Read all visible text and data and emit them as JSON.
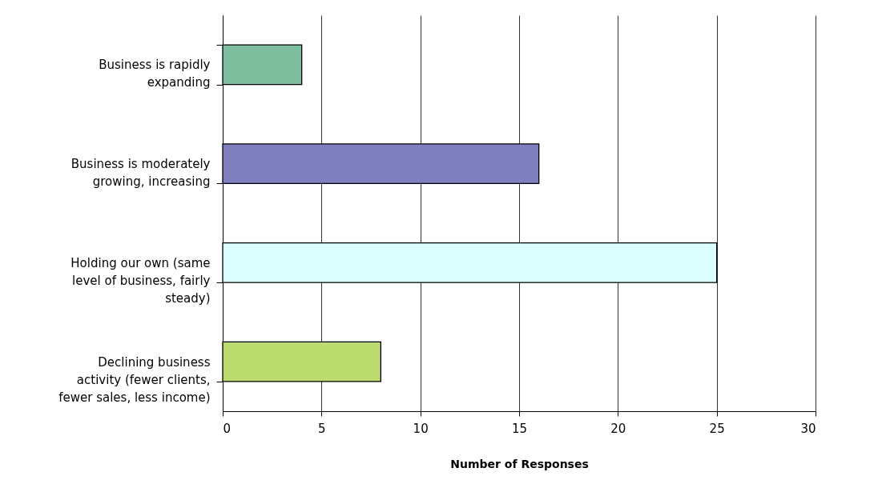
{
  "chart_data": {
    "type": "bar",
    "orientation": "horizontal",
    "xlabel": "Number of Responses",
    "categories": [
      "Business is rapidly expanding",
      "Business is moderately growing, increasing",
      "Holding our own (same level of business, fairly steady)",
      "Declining business activity (fewer clients, fewer sales, less income)"
    ],
    "values": [
      4,
      16,
      25,
      8
    ],
    "colors": [
      "#7fbfa0",
      "#7f7fbf",
      "#dcffff",
      "#bcdc70"
    ],
    "xlim": [
      0,
      30
    ],
    "xticks": [
      0,
      5,
      10,
      15,
      20,
      25,
      30
    ],
    "grid": "x"
  }
}
